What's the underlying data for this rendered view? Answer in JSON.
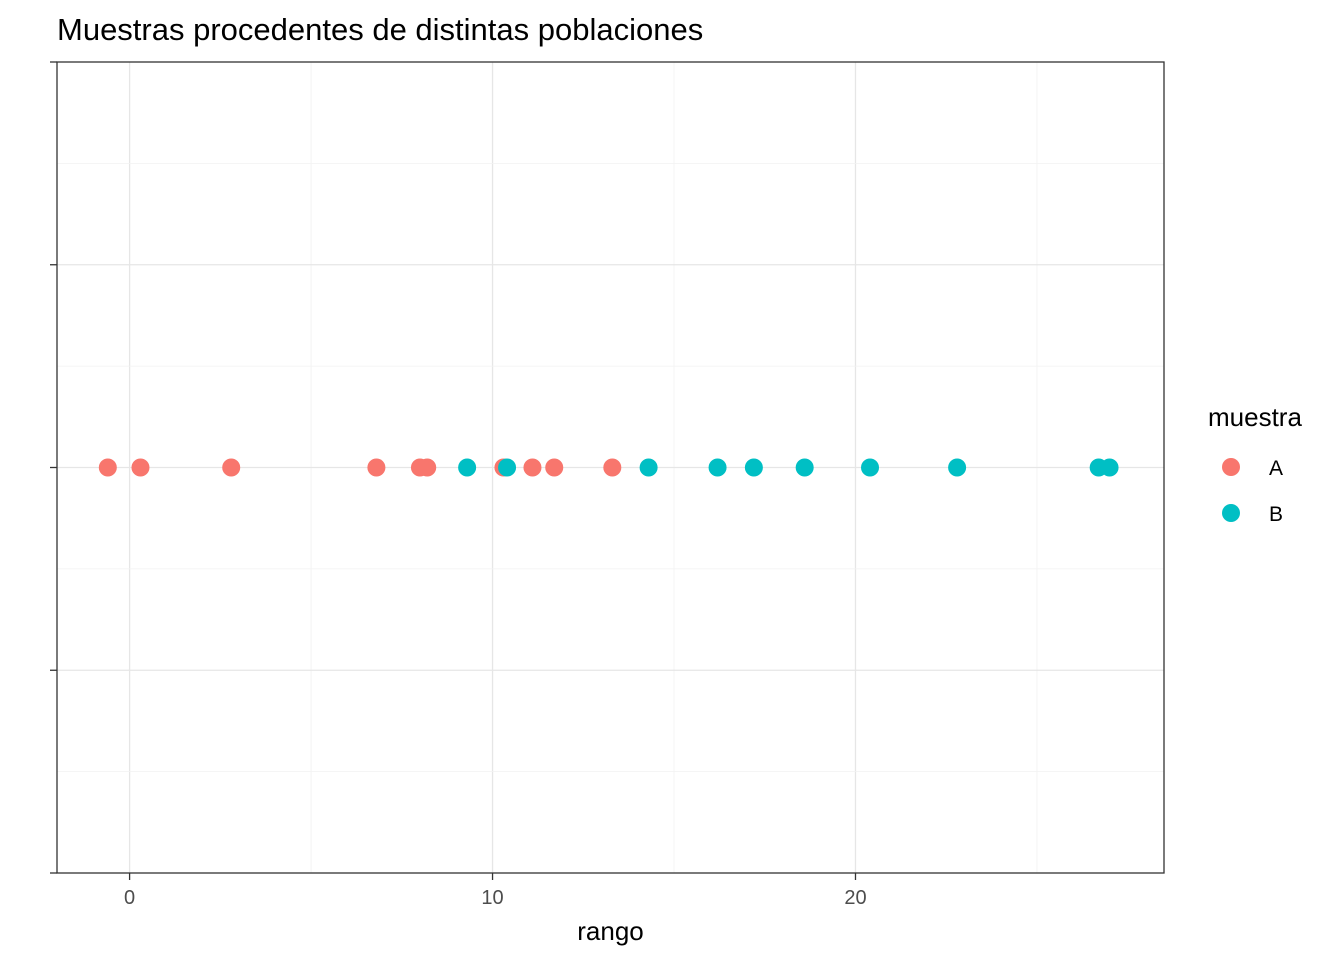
{
  "chart_data": {
    "type": "scatter",
    "title": "Muestras procedentes de distintas poblaciones",
    "xlabel": "rango",
    "ylabel": "",
    "xlim": [
      -2,
      28.5
    ],
    "xticks": [
      0,
      10,
      20
    ],
    "xtick_labels": [
      "0",
      "10",
      "20"
    ],
    "grid": true,
    "legend": {
      "title": "muestra",
      "position": "right"
    },
    "series": [
      {
        "name": "A",
        "color": "#F8766D",
        "x": [
          -0.6,
          0.3,
          2.8,
          6.8,
          8.0,
          8.2,
          10.3,
          11.1,
          11.7,
          13.3
        ],
        "y": [
          0,
          0,
          0,
          0,
          0,
          0,
          0,
          0,
          0,
          0
        ]
      },
      {
        "name": "B",
        "color": "#00BFC4",
        "x": [
          9.3,
          10.4,
          14.3,
          16.2,
          17.2,
          18.6,
          20.4,
          22.8,
          26.7,
          27.0
        ],
        "y": [
          0,
          0,
          0,
          0,
          0,
          0,
          0,
          0,
          0,
          0
        ]
      }
    ]
  }
}
